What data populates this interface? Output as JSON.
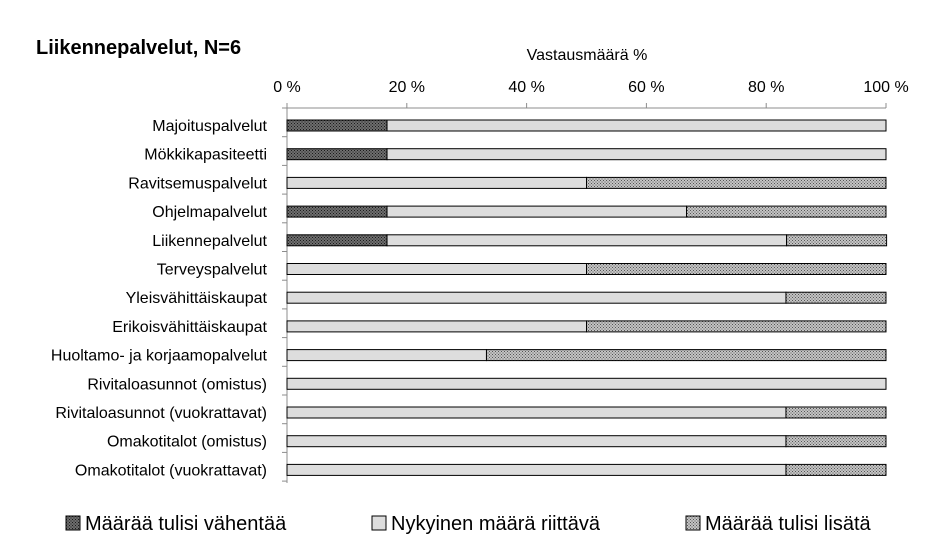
{
  "chart_data": {
    "type": "bar",
    "orientation": "horizontal",
    "stacked": true,
    "title": "Liikennepalvelut, N=6",
    "xlabel": "Vastausmäärä %",
    "ylabel": "",
    "xlim": [
      0,
      100
    ],
    "x_ticks": [
      "0 %",
      "20 %",
      "40 %",
      "60 %",
      "80 %",
      "100 %"
    ],
    "grid": false,
    "legend_position": "bottom",
    "categories": [
      "Majoituspalvelut",
      "Mökkikapasiteetti",
      "Ravitsemuspalvelut",
      "Ohjelmapalvelut",
      "Liikennepalvelut",
      "Terveyspalvelut",
      "Yleisvähittäiskaupat",
      "Erikoisvähittäiskaupat",
      "Huoltamo- ja korjaamopalvelut",
      "Rivitaloasunnot (omistus)",
      "Rivitaloasunnot (vuokrattavat)",
      "Omakotitalot (omistus)",
      "Omakotitalot (vuokrattavat)"
    ],
    "series": [
      {
        "name": "Määrää tulisi vähentää",
        "color": "#4a4a4a",
        "pattern": "dense-dots",
        "values": [
          16.7,
          16.7,
          0,
          16.7,
          16.7,
          0,
          0,
          0,
          0,
          0,
          0,
          0,
          0
        ]
      },
      {
        "name": "Nykyinen määrä riittävä",
        "color": "#dddddd",
        "pattern": "solid",
        "values": [
          83.3,
          83.3,
          50,
          50,
          66.7,
          50,
          83.3,
          50,
          33.3,
          100,
          83.3,
          83.3,
          83.3
        ]
      },
      {
        "name": "Määrää tulisi lisätä",
        "color": "#9a9a9a",
        "pattern": "light-dots",
        "values": [
          0,
          0,
          50,
          33.3,
          16.7,
          50,
          16.7,
          50,
          66.7,
          0,
          16.7,
          16.7,
          16.7
        ]
      }
    ]
  }
}
